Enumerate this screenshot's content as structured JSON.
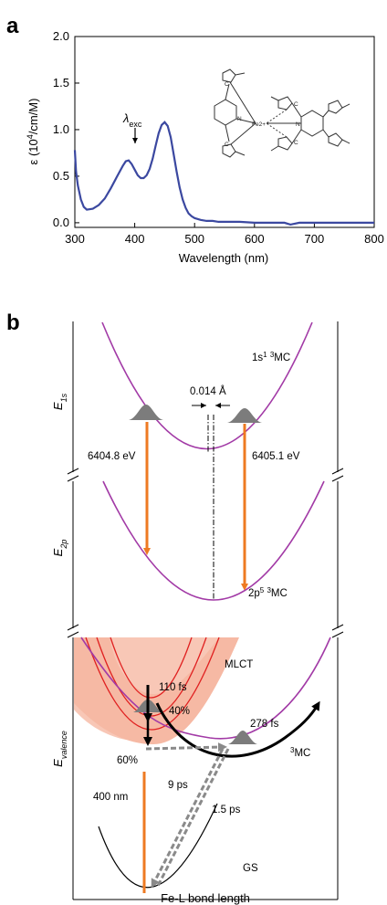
{
  "panel_a": {
    "letter": "a",
    "inset_label": "λexc",
    "inset_main": "λ",
    "inset_sub": "exc"
  },
  "panel_b": {
    "letter": "b",
    "e1s_label": "E",
    "e1s_sub": "1s",
    "e2p_label": "E",
    "e2p_sub": "2p",
    "evalence_label": "E",
    "evalence_sub": "valence",
    "state_1s_pre": "1s",
    "state_1s_sup1": "1",
    "state_1s_sup2": "3",
    "state_1s_post": "MC",
    "state_2p_pre": "2p",
    "state_2p_sup1": "5",
    "state_2p_sup2": "3",
    "state_2p_post": "MC",
    "shift": "0.014 Å",
    "energy_left": "6404.8 eV",
    "energy_right": "6405.1 eV",
    "mlct": "MLCT",
    "t110": "110 fs",
    "p40": "40%",
    "p60": "60%",
    "t278": "278 fs",
    "mc3_sup": "3",
    "mc3": "MC",
    "t9": "9 ps",
    "t15": "1.5 ps",
    "nm400": "400 nm",
    "gs": "GS",
    "xlabel": "Fe-L bond length"
  },
  "colors": {
    "spectrum": "#3b48a0",
    "parabola_purple": "#a23aa6",
    "mlct_band": "#f6b9a4",
    "mlct_lines": "#e02020",
    "orange_arrow": "#ee7a22",
    "gray": "#808080"
  },
  "molecule_labels": {
    "n": "N",
    "c": "C",
    "fe": "Fe2+"
  },
  "chart_data": [
    {
      "type": "line",
      "title": "",
      "xlabel": "Wavelength (nm)",
      "ylabel": "ε (10⁴/cm/M)",
      "ylabel_parts": {
        "main": "ε (10",
        "sup": "4",
        "tail": "/cm/M)"
      },
      "xlim": [
        300,
        800
      ],
      "ylim": [
        -0.05,
        2.0
      ],
      "xticks": [
        "300",
        "400",
        "500",
        "600",
        "700",
        "800"
      ],
      "yticks": [
        "0.0",
        "0.5",
        "1.0",
        "1.5",
        "2.0"
      ],
      "annotation": {
        "label": "λexc",
        "x": 400
      },
      "series": [
        {
          "x": [
            300,
            302,
            305,
            310,
            315,
            320,
            330,
            340,
            350,
            360,
            370,
            380,
            385,
            390,
            395,
            400,
            405,
            410,
            415,
            420,
            425,
            430,
            435,
            440,
            445,
            450,
            455,
            460,
            465,
            470,
            475,
            480,
            485,
            490,
            495,
            500,
            505,
            510,
            520,
            530,
            540,
            550,
            575,
            600,
            625,
            650,
            660,
            675,
            700,
            750,
            800
          ],
          "y": [
            0.78,
            0.55,
            0.4,
            0.25,
            0.17,
            0.14,
            0.15,
            0.19,
            0.26,
            0.37,
            0.49,
            0.61,
            0.66,
            0.67,
            0.63,
            0.57,
            0.51,
            0.48,
            0.48,
            0.51,
            0.58,
            0.69,
            0.83,
            0.96,
            1.05,
            1.08,
            1.04,
            0.92,
            0.74,
            0.55,
            0.38,
            0.25,
            0.16,
            0.1,
            0.07,
            0.05,
            0.04,
            0.03,
            0.02,
            0.02,
            0.01,
            0.01,
            0.01,
            0.0,
            0.0,
            0.0,
            -0.02,
            0.0,
            0.0,
            0.0,
            0.0
          ]
        }
      ]
    },
    {
      "type": "diagram",
      "xlabel": "Fe-L bond length",
      "ylabels": [
        "E1s",
        "E2p",
        "Evalence"
      ]
    }
  ]
}
